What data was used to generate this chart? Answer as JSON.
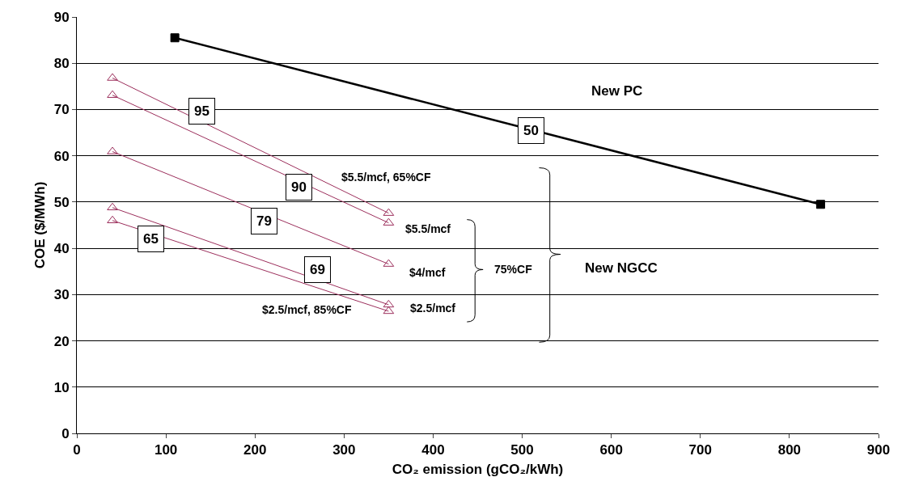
{
  "chart_data": {
    "type": "line",
    "xlabel": "CO₂ emission (gCO₂/kWh)",
    "ylabel": "COE ($/MWh)",
    "xlim": [
      0,
      900
    ],
    "xticks": [
      0,
      100,
      200,
      300,
      400,
      500,
      600,
      700,
      800,
      900
    ],
    "ylim": [
      0,
      90
    ],
    "yticks": [
      0,
      10,
      20,
      30,
      40,
      50,
      60,
      70,
      80,
      90
    ],
    "grid": "y",
    "line_style": "solid",
    "series": [
      {
        "color": "#000000",
        "marker": "square",
        "x": [
          110,
          835
        ],
        "values": [
          85.5,
          49.5
        ]
      },
      {
        "color": "#9c2f5c",
        "marker": "triangle",
        "x": [
          40,
          350
        ],
        "values": [
          76.8,
          47.6
        ]
      },
      {
        "color": "#9c2f5c",
        "marker": "triangle",
        "x": [
          40,
          350
        ],
        "values": [
          73.1,
          45.5
        ]
      },
      {
        "color": "#9c2f5c",
        "marker": "triangle",
        "x": [
          40,
          350
        ],
        "values": [
          60.9,
          36.6
        ]
      },
      {
        "color": "#9c2f5c",
        "marker": "triangle",
        "x": [
          40,
          350
        ],
        "values": [
          48.8,
          27.8
        ]
      },
      {
        "color": "#9c2f5c",
        "marker": "triangle",
        "x": [
          40,
          350
        ],
        "values": [
          46.0,
          26.4
        ]
      }
    ],
    "annotations": [
      {
        "text": "50",
        "x": 510,
        "y": 65.5
      },
      {
        "text": "95",
        "x": 140,
        "y": 69.6
      },
      {
        "text": "90",
        "x": 249,
        "y": 53.3
      },
      {
        "text": "79",
        "x": 210,
        "y": 45.8
      },
      {
        "text": "65",
        "x": 83,
        "y": 42.1
      },
      {
        "text": "69",
        "x": 270,
        "y": 35.4
      },
      "New PC",
      "$5.5/mcf, 65%CF",
      "$5.5/mcf",
      "$4/mcf",
      "$2.5/mcf",
      "$2.5/mcf, 85%CF",
      "75%CF",
      "New NGCC"
    ]
  }
}
